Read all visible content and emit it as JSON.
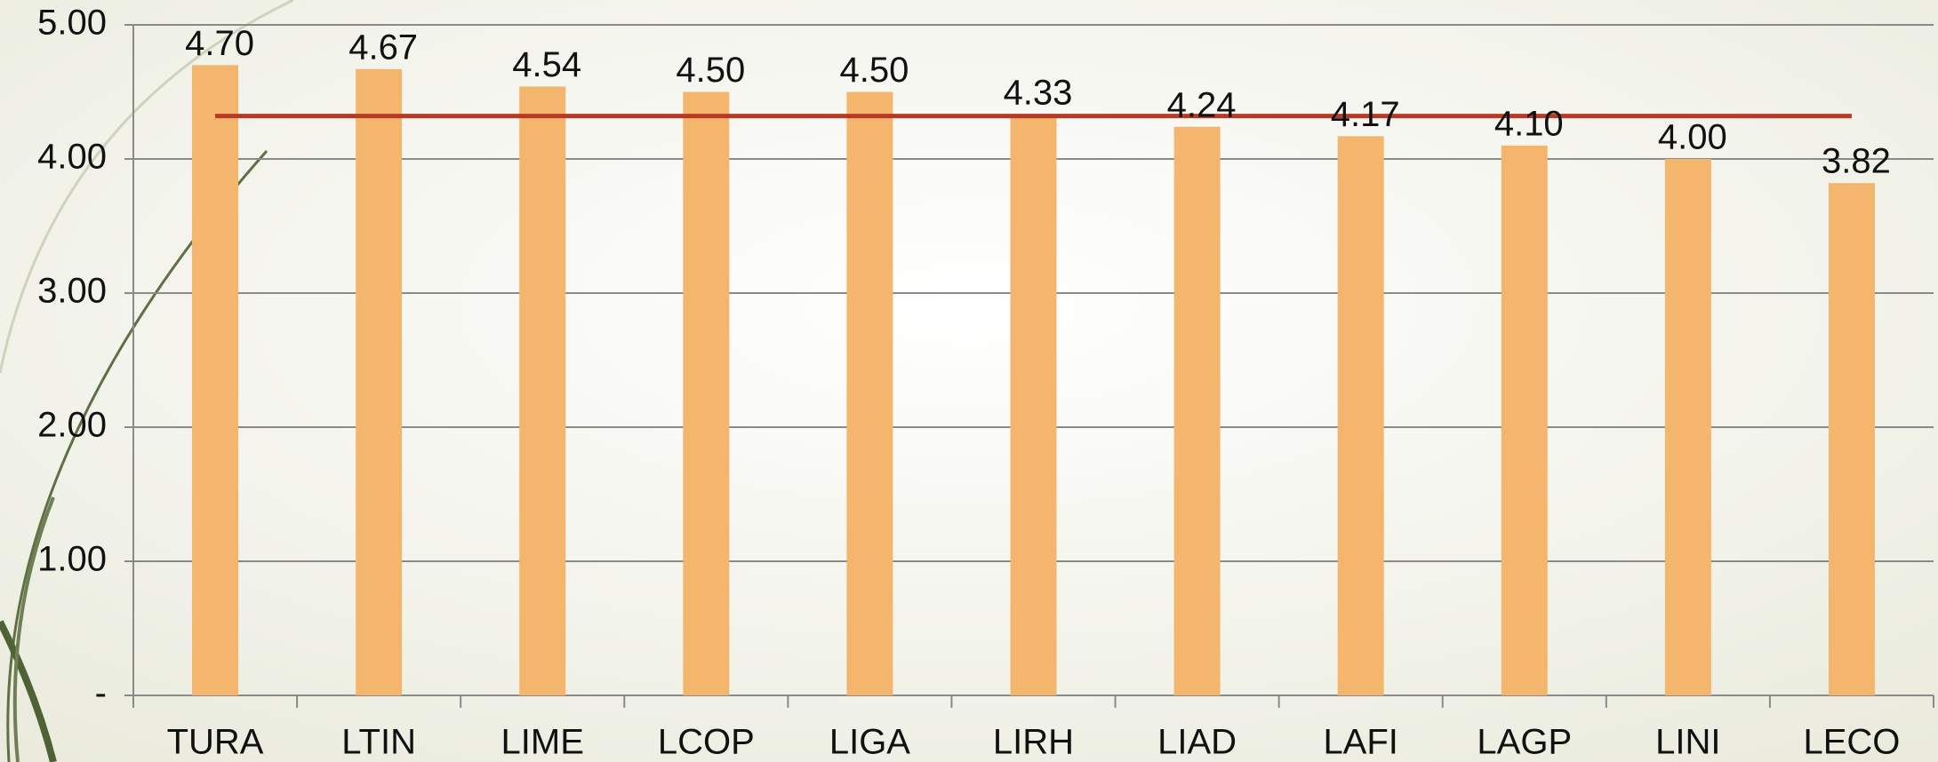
{
  "chart_data": {
    "type": "bar",
    "categories": [
      "TURA",
      "LTIN",
      "LIME",
      "LCOP",
      "LIGA",
      "LIRH",
      "LIAD",
      "LAFI",
      "LAGP",
      "LINI",
      "LECO"
    ],
    "values": [
      4.7,
      4.67,
      4.54,
      4.5,
      4.5,
      4.33,
      4.24,
      4.17,
      4.1,
      4.0,
      3.82
    ],
    "value_labels": [
      "4.70",
      "4.67",
      "4.54",
      "4.50",
      "4.50",
      "4.33",
      "4.24",
      "4.17",
      "4.10",
      "4.00",
      "3.82"
    ],
    "color": "#f4b56c",
    "reference_line": {
      "value": 4.32,
      "color": "#b83a26"
    },
    "ylim": [
      0,
      5
    ],
    "yticks": [
      {
        "value": 0,
        "label": "-"
      },
      {
        "value": 1,
        "label": "1.00"
      },
      {
        "value": 2,
        "label": "2.00"
      },
      {
        "value": 3,
        "label": "3.00"
      },
      {
        "value": 4,
        "label": "4.00"
      },
      {
        "value": 5,
        "label": "5.00"
      }
    ],
    "grid": true
  }
}
